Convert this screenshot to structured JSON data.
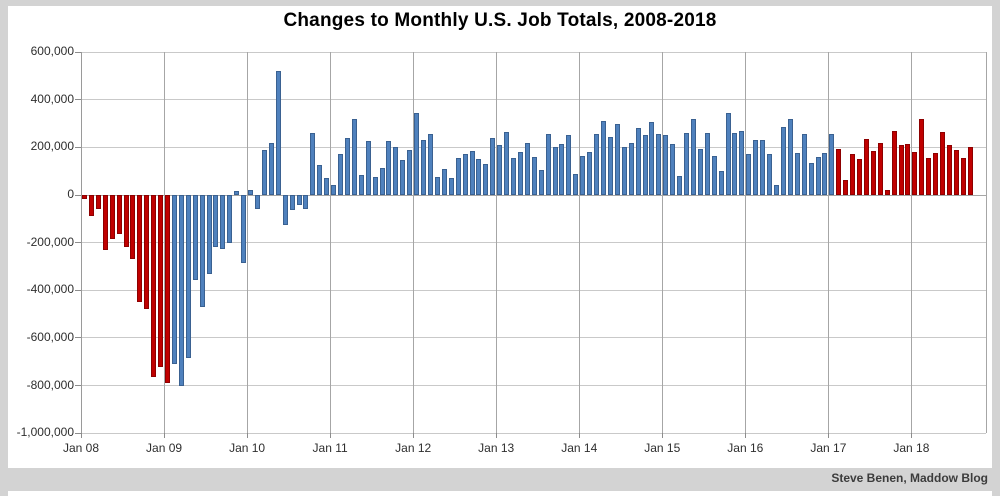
{
  "title": "Changes to Monthly U.S. Job Totals, 2008-2018",
  "attribution": "Steve Benen, Maddow Blog",
  "colors": {
    "bar_red": "#C00000",
    "bar_red_border": "#8E0000",
    "bar_blue": "#4F81BD",
    "bar_blue_border": "#3A6191",
    "background": "#D3D3D3",
    "panel": "#FFFFFF",
    "gridline": "#C9C9C9",
    "year_line": "#A6A6A6",
    "zero_line": "#A6A6A6",
    "axis_line": "#9A9A9A",
    "text": "#2E2E2E"
  },
  "y_axis": {
    "labels": [
      "600,000",
      "400,000",
      "200,000",
      "0",
      "-200,000",
      "-400,000",
      "-600,000",
      "-800,000",
      "-1,000,000"
    ],
    "max": 600000,
    "min": -1000000,
    "step": 200000
  },
  "x_axis": {
    "labels": [
      "Jan 08",
      "Jan 09",
      "Jan 10",
      "Jan 11",
      "Jan 12",
      "Jan 13",
      "Jan 14",
      "Jan 15",
      "Jan 16",
      "Jan 17",
      "Jan 18"
    ]
  },
  "chart_data": {
    "type": "bar",
    "title": "Changes to Monthly U.S. Job Totals, 2008-2018",
    "series_name": "Monthly change in U.S. job totals",
    "unit": "jobs",
    "ylim": [
      -1000000,
      600000
    ],
    "grid": true,
    "legend": false,
    "start_month": "2008-01",
    "end_month": "2018-09",
    "values_by_year": {
      "2008": [
        -15000,
        -90000,
        -60000,
        -230000,
        -185000,
        -165000,
        -220000,
        -270000,
        -450000,
        -480000,
        -765000,
        -720000
      ],
      "2009": [
        -790000,
        -710000,
        -800000,
        -685000,
        -355000,
        -470000,
        -330000,
        -220000,
        -225000,
        -200000,
        15000,
        -285000
      ],
      "2010": [
        20000,
        -60000,
        190000,
        220000,
        520000,
        -125000,
        -65000,
        -40000,
        -60000,
        260000,
        125000,
        70000
      ],
      "2011": [
        40000,
        170000,
        240000,
        320000,
        85000,
        225000,
        75000,
        115000,
        225000,
        200000,
        145000,
        190000
      ],
      "2012": [
        345000,
        230000,
        255000,
        75000,
        110000,
        70000,
        155000,
        170000,
        185000,
        150000,
        130000,
        240000
      ],
      "2013": [
        210000,
        265000,
        155000,
        180000,
        220000,
        160000,
        105000,
        255000,
        200000,
        215000,
        250000,
        90000
      ],
      "2014": [
        165000,
        180000,
        255000,
        310000,
        245000,
        300000,
        200000,
        220000,
        280000,
        250000,
        305000,
        255000
      ],
      "2015": [
        250000,
        215000,
        80000,
        260000,
        320000,
        195000,
        260000,
        165000,
        100000,
        345000,
        260000,
        270000
      ],
      "2016": [
        170000,
        230000,
        230000,
        170000,
        40000,
        285000,
        320000,
        175000,
        255000,
        135000,
        160000,
        175000
      ],
      "2017": [
        255000,
        195000,
        65000,
        170000,
        150000,
        235000,
        185000,
        220000,
        20000,
        270000,
        210000,
        215000
      ],
      "2018": [
        180000,
        320000,
        155000,
        175000,
        265000,
        210000,
        190000,
        155000,
        200000
      ]
    },
    "color_segments": [
      {
        "through_index": 12,
        "color_key": "bar_red",
        "note": "Jan 2008 - Jan 2009"
      },
      {
        "through_index": 108,
        "color_key": "bar_blue",
        "note": "Feb 2009 - Jan 2017"
      },
      {
        "through_index": 128,
        "color_key": "bar_red",
        "note": "Feb 2017 - Sep 2018"
      }
    ]
  }
}
